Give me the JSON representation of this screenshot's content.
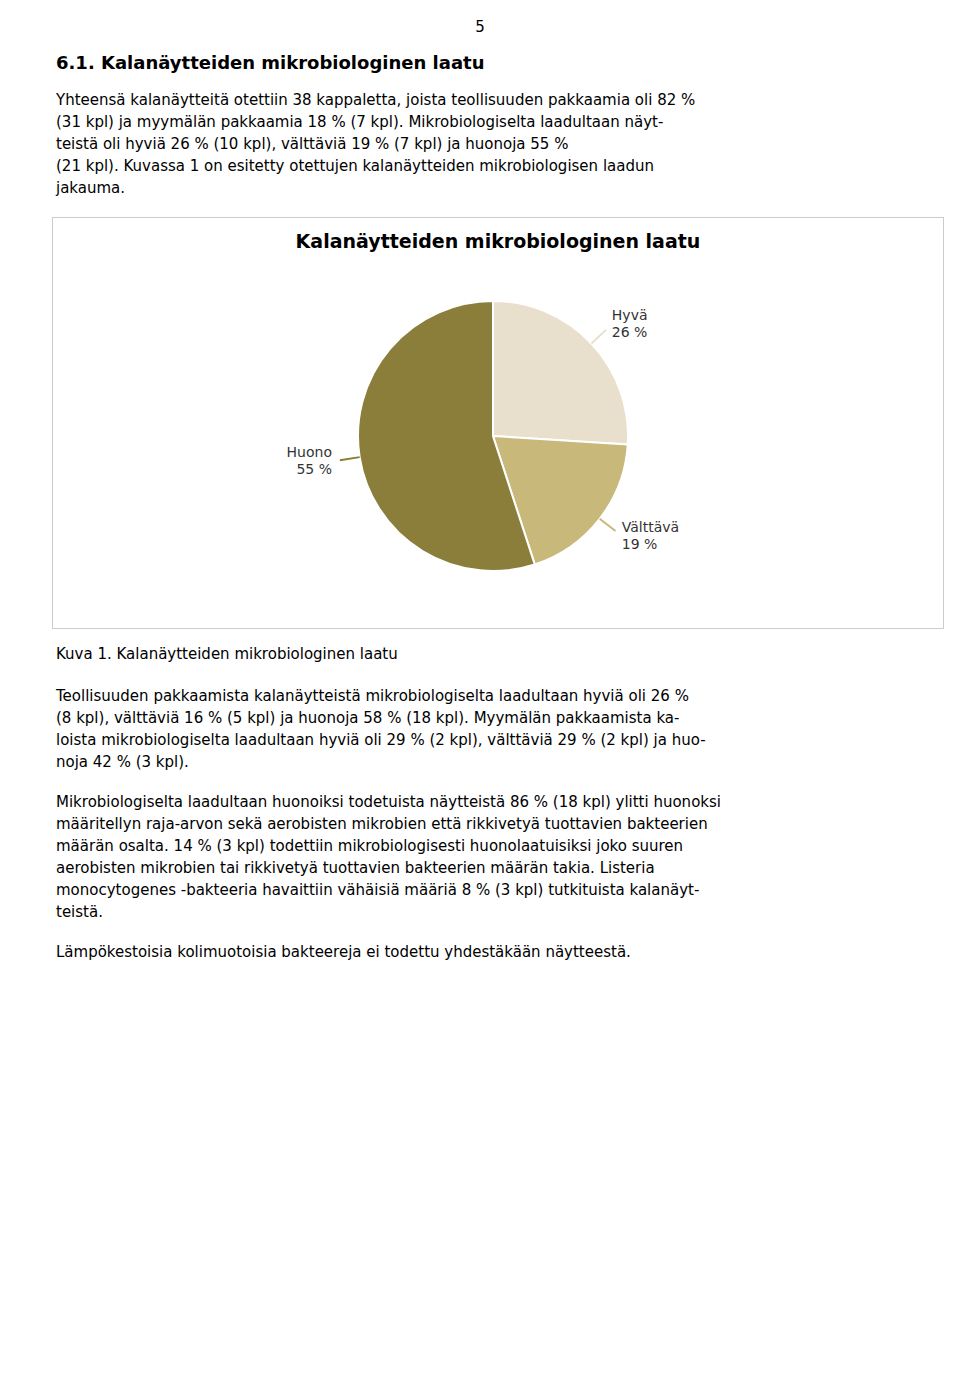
{
  "chart_data": {
    "type": "pie",
    "title": "Kalanäytteiden mikrobiologinen laatu",
    "categories": [
      "Hyvä",
      "Välttävä",
      "Huono"
    ],
    "values": [
      26,
      19,
      55
    ],
    "value_labels": [
      "26 %",
      "19 %",
      "55 %"
    ],
    "colors": [
      "#e8e0cc",
      "#c8b87a",
      "#8b7d3a"
    ],
    "data_labels": true,
    "annotations": [
      "5",
      "6.1. Kalanäytteiden mikrobiologinen laatu",
      "Yhteensä kalanäytteitä otettiin 38 kappaletta, joista teollisuuden pakkaamia oli 82 %",
      "(31 kpl) ja myymälän pakkaamia 18 % (7 kpl). Mikrobiologiselta laadultaan näyt-",
      "teistä oli hyviä 26 % (10 kpl), välttäviä 19 % (7 kpl) ja huonoja 55 %",
      "(21 kpl). Kuvassa 1 on esitetty otettujen kalanäytteiden mikrobiologisen laadun",
      "jakauma.",
      "Kuva 1. Kalanäytteiden mikrobiologinen laatu",
      "Teollisuuden pakkaamista kalanäytteistä mikrobiologiselta laadultaan hyviä oli 26 %",
      "(8 kpl), välttäviä 16 % (5 kpl) ja huonoja 58 % (18 kpl). Myymälän pakkaamista ka-",
      "loista mikrobiologiselta laadultaan hyviä oli 29 % (2 kpl), välttäviä 29 % (2 kpl) ja huo-",
      "noja 42 % (3 kpl).",
      "Mikrobiologiselta laadultaan huonoiksi todetuista näytteistä 86 % (18 kpl) ylitti huonoksi",
      "määritellyn raja-arvon sekä aerobisten mikrobien että rikkivetyä tuottavien bakteerien",
      "määrän osalta. 14 % (3 kpl) todettiin mikrobiologisesti huonolaatuisiksi joko suuren",
      "aerobisten mikrobien tai rikkivetyä tuottavien bakteerien määrän takia. Listeria",
      "monocytogenes -bakteeria havaittiin vähäisiä määriä 8 % (3 kpl) tutkituista kalanäyt-",
      "teistä.",
      "Lämpökestoisia kolimuotoisia bakteereja ei todettu yhdestäkään näytteestä."
    ]
  }
}
